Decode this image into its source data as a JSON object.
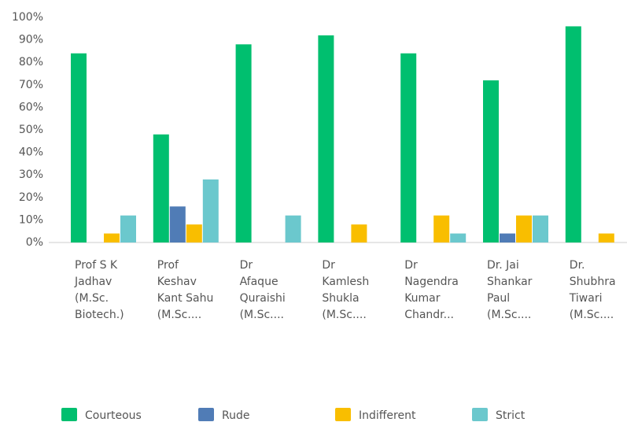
{
  "chart_data": {
    "type": "bar",
    "categories": [
      [
        "Prof S K",
        "Jadhav",
        "(M.Sc.",
        "Biotech.)"
      ],
      [
        "Prof",
        "Keshav",
        "Kant Sahu",
        "(M.Sc...."
      ],
      [
        "Dr",
        "Afaque",
        "Quraishi",
        "(M.Sc...."
      ],
      [
        "Dr",
        "Kamlesh",
        "Shukla",
        "(M.Sc...."
      ],
      [
        "Dr",
        "Nagendra",
        "Kumar",
        "Chandr..."
      ],
      [
        "Dr. Jai",
        "Shankar",
        "Paul",
        "(M.Sc...."
      ],
      [
        "Dr.",
        "Shubhra",
        "Tiwari",
        "(M.Sc...."
      ]
    ],
    "series": [
      {
        "name": "Courteous",
        "color": "#00bf6f",
        "values": [
          84,
          48,
          88,
          92,
          84,
          72,
          96
        ]
      },
      {
        "name": "Rude",
        "color": "#507cb6",
        "values": [
          0,
          16,
          0,
          0,
          0,
          4,
          0
        ]
      },
      {
        "name": "Indifferent",
        "color": "#f9be00",
        "values": [
          4,
          8,
          0,
          8,
          12,
          12,
          4
        ]
      },
      {
        "name": "Strict",
        "color": "#6bc8cd",
        "values": [
          12,
          28,
          12,
          0,
          4,
          12,
          0
        ]
      }
    ],
    "ylim": [
      0,
      100
    ],
    "yticks": [
      {
        "value": 0,
        "label": "0%"
      },
      {
        "value": 10,
        "label": "10%"
      },
      {
        "value": 20,
        "label": "20%"
      },
      {
        "value": 30,
        "label": "30%"
      },
      {
        "value": 40,
        "label": "40%"
      },
      {
        "value": 50,
        "label": "50%"
      },
      {
        "value": 60,
        "label": "60%"
      },
      {
        "value": 70,
        "label": "70%"
      },
      {
        "value": 80,
        "label": "80%"
      },
      {
        "value": 90,
        "label": "90%"
      },
      {
        "value": 100,
        "label": "100%"
      }
    ],
    "grid": false,
    "legend": "bottom"
  }
}
